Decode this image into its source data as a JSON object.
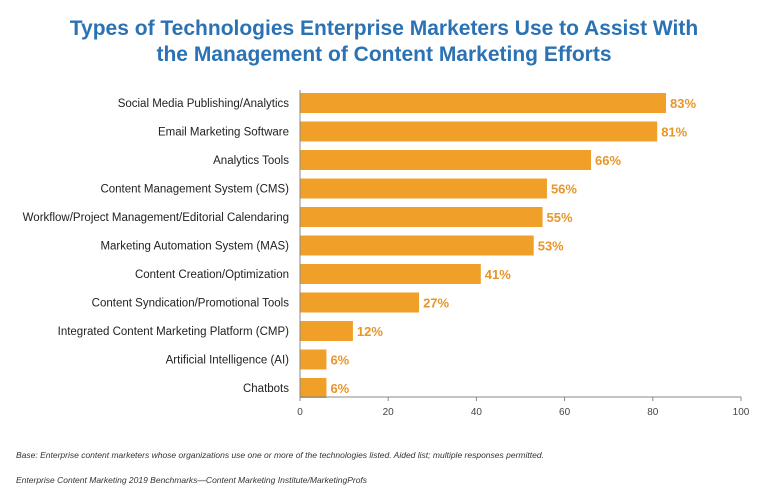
{
  "title_lines": [
    "Types of Technologies Enterprise Marketers Use to Assist With",
    "the Management of Content Marketing Efforts"
  ],
  "footnotes": {
    "base": "Base: Enterprise content marketers whose organizations use one or more of the technologies listed. Aided list; multiple responses permitted.",
    "source": "Enterprise Content Marketing 2019 Benchmarks—Content Marketing Institute/MarketingProfs"
  },
  "colors": {
    "title": "#2b72b4",
    "bar": "#f0a029",
    "value_label": "#e8952a",
    "axis": "#888888"
  },
  "chart_data": {
    "type": "bar",
    "orientation": "horizontal",
    "categories": [
      "Social Media Publishing/Analytics",
      "Email Marketing Software",
      "Analytics Tools",
      "Content Management System (CMS)",
      "Workflow/Project Management/Editorial Calendaring",
      "Marketing Automation System (MAS)",
      "Content Creation/Optimization",
      "Content Syndication/Promotional Tools",
      "Integrated Content Marketing Platform (CMP)",
      "Artificial Intelligence (AI)",
      "Chatbots"
    ],
    "values": [
      83,
      81,
      66,
      56,
      55,
      53,
      41,
      27,
      12,
      6,
      6
    ],
    "value_labels": [
      "83%",
      "81%",
      "66%",
      "56%",
      "55%",
      "53%",
      "41%",
      "27%",
      "12%",
      "6%",
      "6%"
    ],
    "xlim": [
      0,
      100
    ],
    "xticks": [
      0,
      20,
      40,
      60,
      80,
      100
    ],
    "grid": false
  }
}
